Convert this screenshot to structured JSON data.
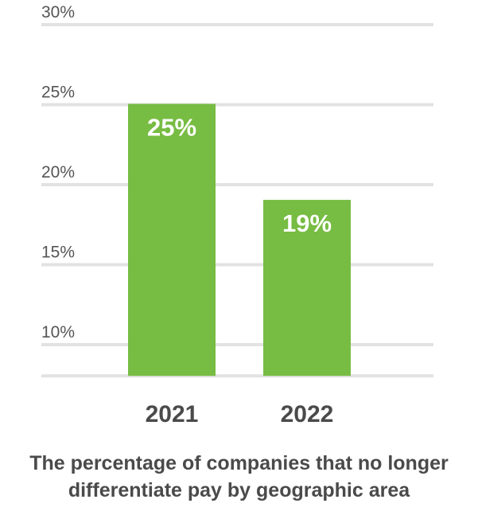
{
  "chart_data": {
    "type": "bar",
    "categories": [
      "2021",
      "2022"
    ],
    "values": [
      25,
      19
    ],
    "data_labels": [
      "25%",
      "19%"
    ],
    "ylim": [
      8,
      30
    ],
    "yticks": [
      10,
      15,
      20,
      25,
      30
    ],
    "ytick_labels": [
      "10%",
      "15%",
      "20%",
      "25%",
      "30%"
    ],
    "grid": true,
    "bar_color": "#77bc43",
    "title": "",
    "xlabel": "",
    "ylabel": ""
  },
  "caption": {
    "line1": "The percentage of companies that no longer",
    "line2": "differentiate pay by geographic area"
  }
}
